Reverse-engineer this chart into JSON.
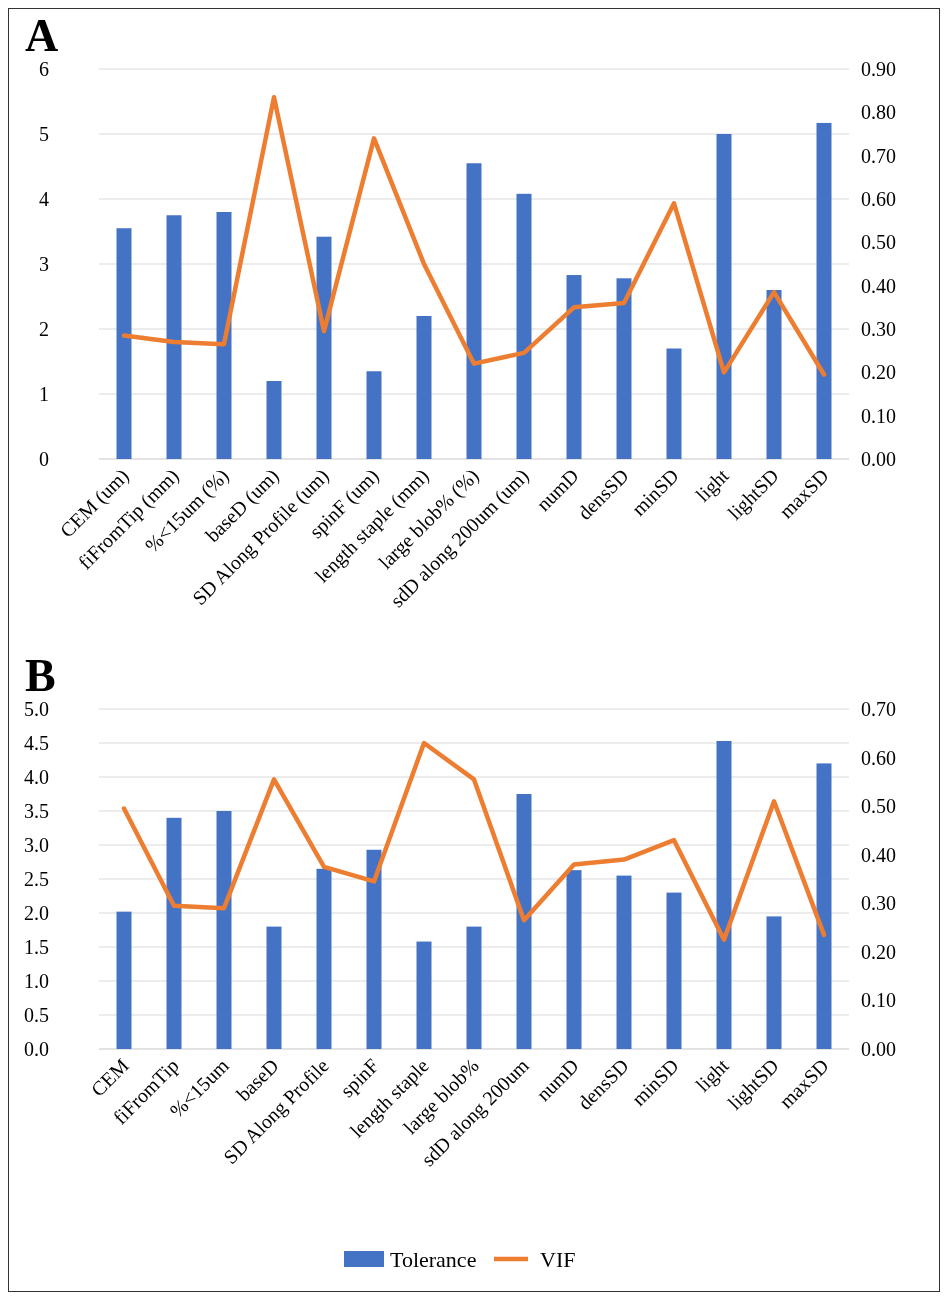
{
  "chart_data": [
    {
      "type": "bar",
      "title": "A",
      "categories": [
        "CEM (um)",
        "fiFromTip (mm)",
        "%<15um (%)",
        "baseD (um)",
        "SD Along Profile (um)",
        "spinF (um)",
        "length staple (mm)",
        "large blob% (%)",
        "sdD along 200um (um)",
        "numD",
        "densSD",
        "minSD",
        "light",
        "lightSD",
        "maxSD"
      ],
      "series": [
        {
          "color": "#4472c4",
          "values": [
            3.55,
            3.75,
            3.8,
            1.2,
            3.42,
            1.35,
            2.2,
            4.55,
            4.08,
            2.83,
            2.78,
            1.7,
            5.0,
            2.6,
            5.17
          ]
        },
        {
          "type": "line",
          "axis": "y2",
          "color": "#ed7d31",
          "values": [
            0.285,
            0.27,
            0.265,
            0.835,
            0.295,
            0.74,
            0.45,
            0.22,
            0.245,
            0.35,
            0.36,
            0.59,
            0.2,
            0.385,
            0.195
          ]
        }
      ],
      "ylim": [
        0,
        6
      ],
      "yticks": [
        0,
        1,
        2,
        3,
        4,
        5,
        6
      ],
      "y2lim": [
        0,
        0.9
      ],
      "y2ticks": [
        {
          "value": 0,
          "label": "0.00"
        },
        {
          "value": 0.1,
          "label": "0.10"
        },
        {
          "value": 0.2,
          "label": "0.20"
        },
        {
          "value": 0.3,
          "label": "0.30"
        },
        {
          "value": 0.4,
          "label": "0.40"
        },
        {
          "value": 0.5,
          "label": "0.50"
        },
        {
          "value": 0.6,
          "label": "0.60"
        },
        {
          "value": 0.7,
          "label": "0.70"
        },
        {
          "value": 0.8,
          "label": "0.80"
        },
        {
          "value": 0.9,
          "label": "0.90"
        }
      ],
      "grid": "y",
      "marker": "none"
    },
    {
      "type": "bar",
      "title": "B",
      "categories": [
        "CEM",
        "fiFromTip",
        "%<15um",
        "baseD",
        "SD Along Profile",
        "spinF",
        "length staple",
        "large blob%",
        "sdD along 200um",
        "numD",
        "densSD",
        "minSD",
        "light",
        "lightSD",
        "maxSD"
      ],
      "series": [
        {
          "name": "Tolerance",
          "color": "#4472c4",
          "values": [
            2.02,
            3.4,
            3.5,
            1.8,
            2.65,
            2.93,
            1.58,
            1.8,
            3.75,
            2.63,
            2.55,
            2.3,
            4.53,
            1.95,
            4.2
          ]
        },
        {
          "name": "VIF",
          "type": "line",
          "axis": "y2",
          "color": "#ed7d31",
          "values": [
            0.495,
            0.295,
            0.29,
            0.555,
            0.375,
            0.345,
            0.63,
            0.555,
            0.265,
            0.38,
            0.39,
            0.43,
            0.225,
            0.51,
            0.235
          ]
        }
      ],
      "ylim": [
        0,
        5
      ],
      "yticks": [
        {
          "value": 0,
          "label": "0.0"
        },
        {
          "value": 0.5,
          "label": "0.5"
        },
        {
          "value": 1,
          "label": "1.0"
        },
        {
          "value": 1.5,
          "label": "1.5"
        },
        {
          "value": 2,
          "label": "2.0"
        },
        {
          "value": 2.5,
          "label": "2.5"
        },
        {
          "value": 3,
          "label": "3.0"
        },
        {
          "value": 3.5,
          "label": "3.5"
        },
        {
          "value": 4,
          "label": "4.0"
        },
        {
          "value": 4.5,
          "label": "4.5"
        },
        {
          "value": 5,
          "label": "5.0"
        }
      ],
      "y2lim": [
        0,
        0.7
      ],
      "y2ticks": [
        {
          "value": 0,
          "label": "0.00"
        },
        {
          "value": 0.1,
          "label": "0.10"
        },
        {
          "value": 0.2,
          "label": "0.20"
        },
        {
          "value": 0.3,
          "label": "0.30"
        },
        {
          "value": 0.4,
          "label": "0.40"
        },
        {
          "value": 0.5,
          "label": "0.50"
        },
        {
          "value": 0.6,
          "label": "0.60"
        },
        {
          "value": 0.7,
          "label": "0.70"
        }
      ],
      "grid": "y",
      "marker": "none",
      "legend": "bottom"
    }
  ]
}
